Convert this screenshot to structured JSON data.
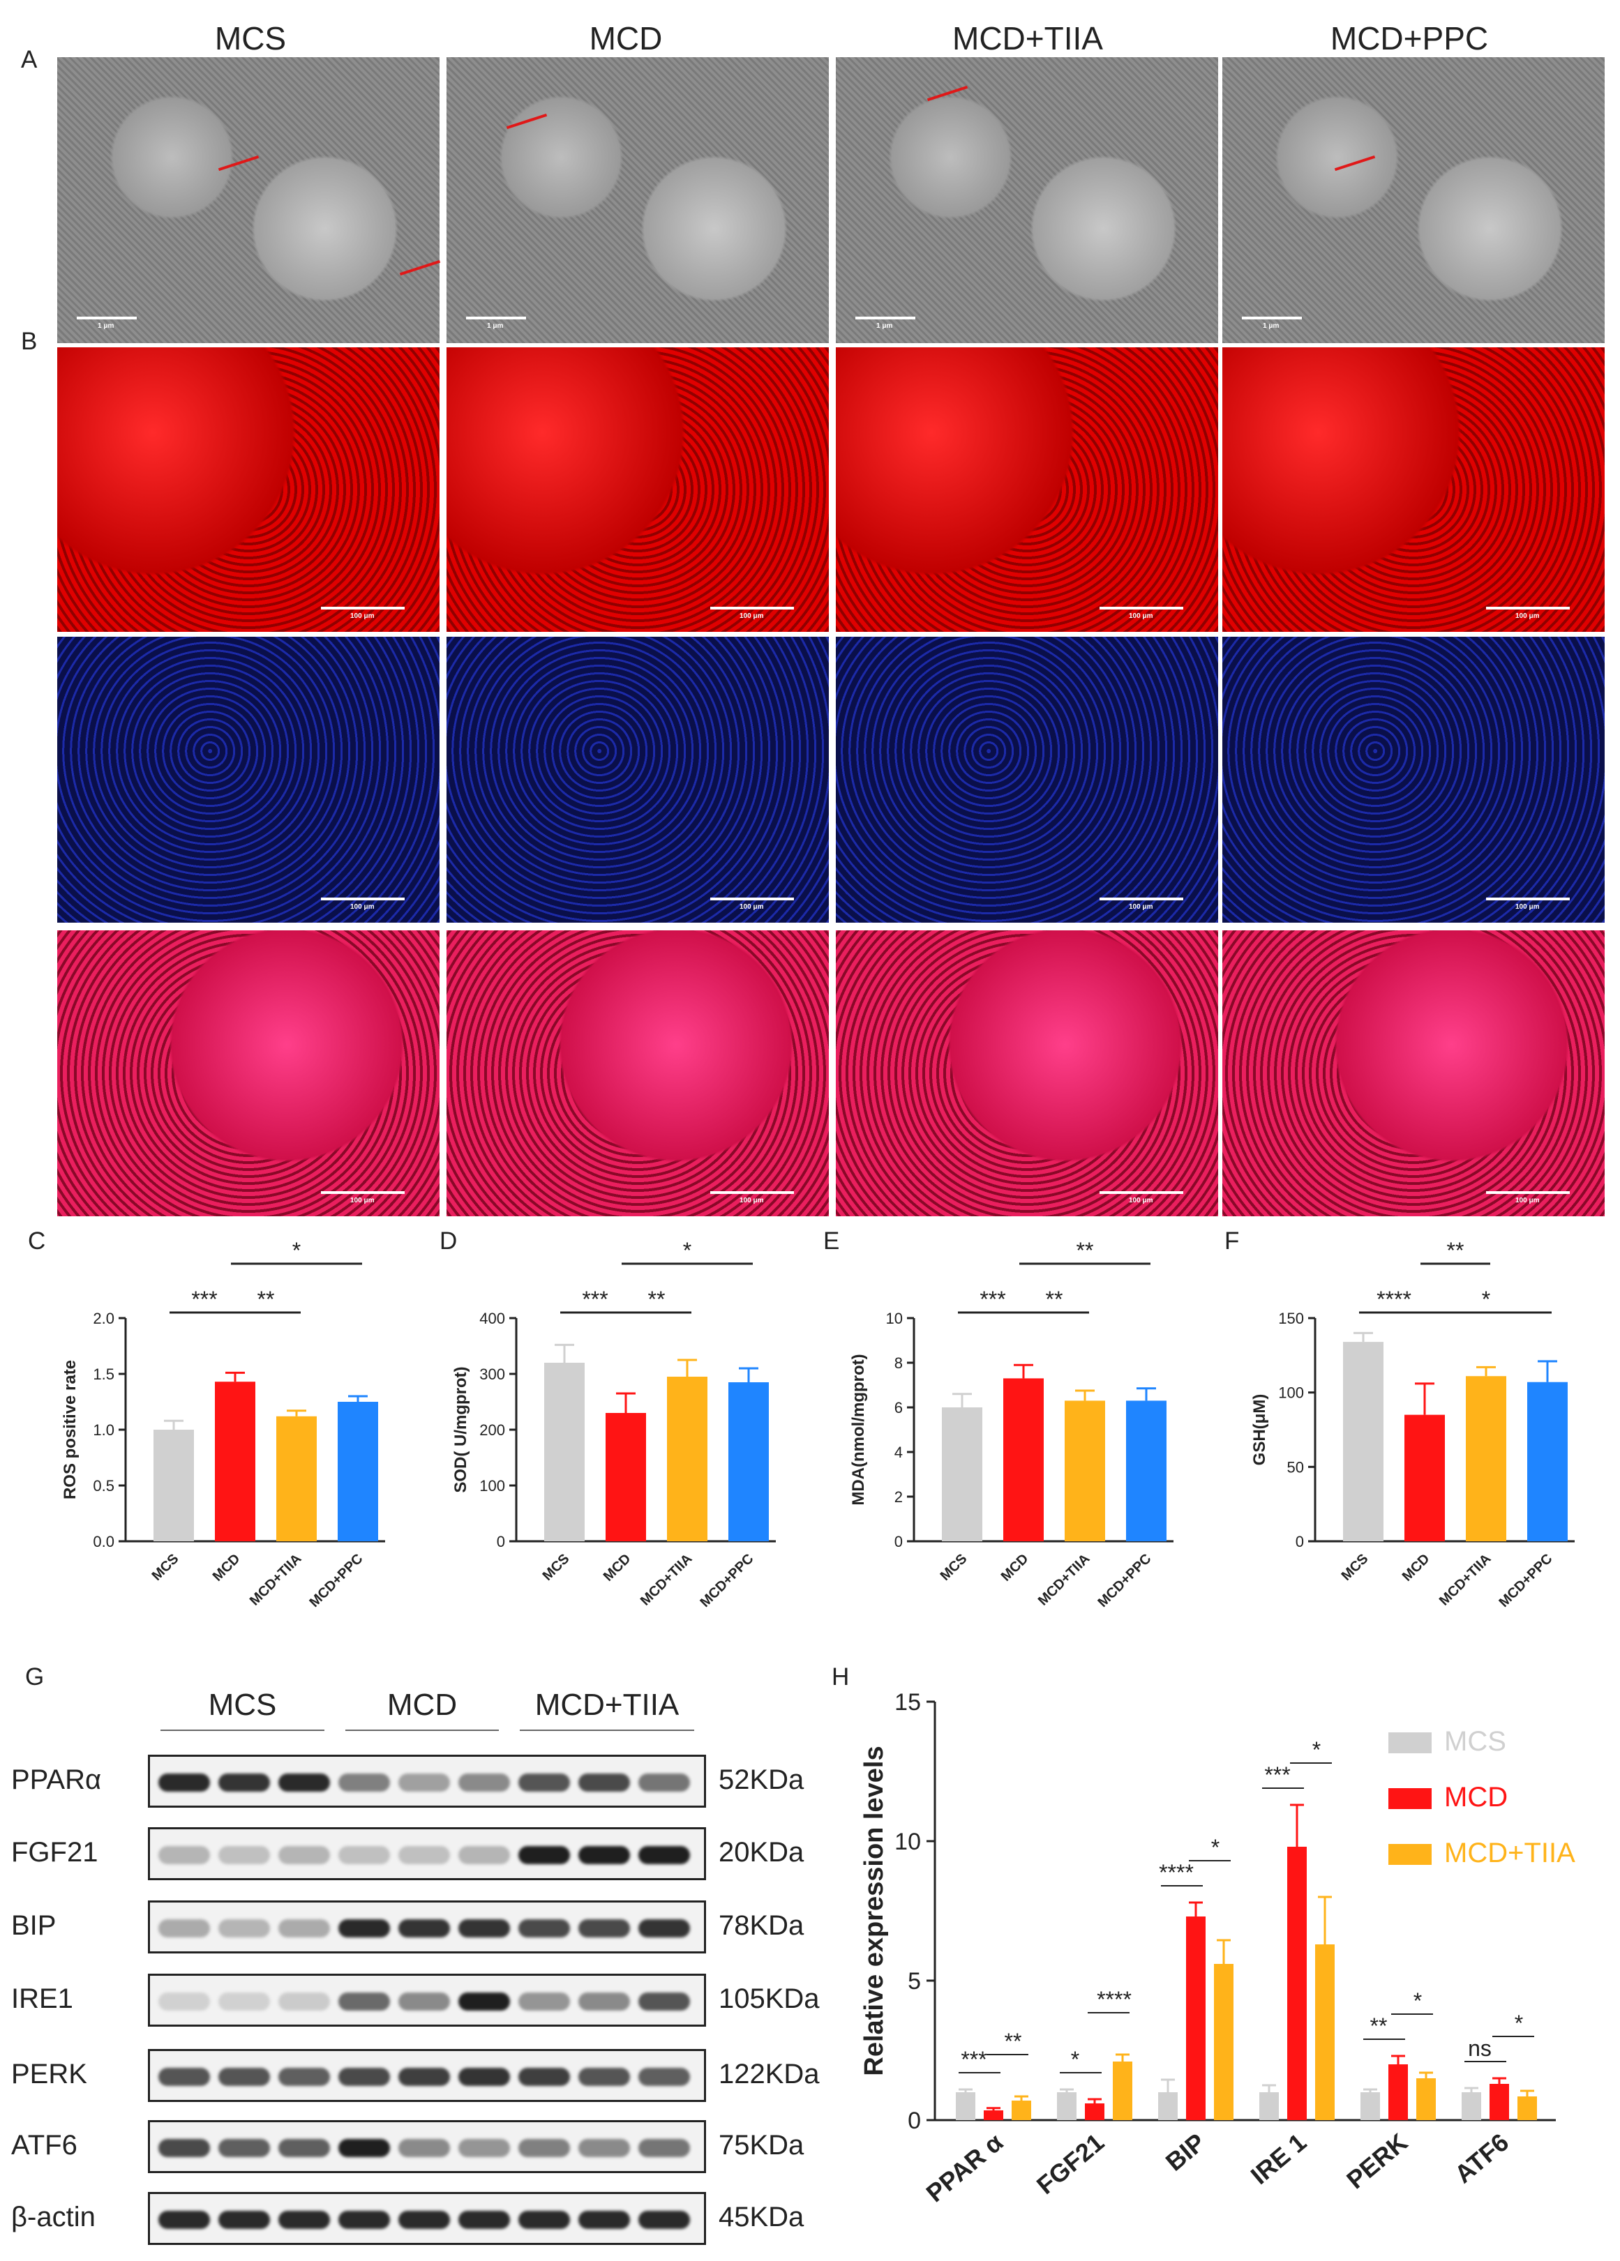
{
  "panel_letters": {
    "A": "A",
    "B": "B",
    "C": "C",
    "D": "D",
    "E": "E",
    "F": "F",
    "G": "G",
    "H": "H"
  },
  "column_headers": [
    "MCS",
    "MCD",
    "MCD+TIIA",
    "MCD+PPC"
  ],
  "em_scale_label": "1 μm",
  "fluor_scale_label": "100 μm",
  "colors": {
    "MCS": "#d0d0d0",
    "MCD": "#ff1414",
    "MCD+TIIA": "#ffb31a",
    "MCD+PPC": "#1f85ff",
    "ros": "#e00000",
    "dapi": "#141e96",
    "merge": "#e0205e"
  },
  "chart_data": [
    {
      "panel": "C",
      "type": "bar",
      "categories": [
        "MCS",
        "MCD",
        "MCD+TIIA",
        "MCD+PPC"
      ],
      "values": [
        1.0,
        1.43,
        1.12,
        1.25
      ],
      "errors": [
        0.08,
        0.08,
        0.05,
        0.05
      ],
      "ylabel": "ROS positive rate",
      "ylim": [
        0,
        2.0
      ],
      "yticks": [
        "0.0",
        "0.5",
        "1.0",
        "1.5",
        "2.0"
      ],
      "significance": [
        {
          "from": 0,
          "to": 1,
          "label": "***",
          "level": 0
        },
        {
          "from": 1,
          "to": 2,
          "label": "**",
          "level": 0
        },
        {
          "from": 1,
          "to": 3,
          "label": "*",
          "level": 1
        }
      ]
    },
    {
      "panel": "D",
      "type": "bar",
      "categories": [
        "MCS",
        "MCD",
        "MCD+TIIA",
        "MCD+PPC"
      ],
      "values": [
        320,
        230,
        295,
        285
      ],
      "errors": [
        32,
        35,
        30,
        25
      ],
      "ylabel": "SOD( U/mgprot)",
      "ylim": [
        0,
        400
      ],
      "yticks": [
        "0",
        "100",
        "200",
        "300",
        "400"
      ],
      "significance": [
        {
          "from": 0,
          "to": 1,
          "label": "***",
          "level": 0
        },
        {
          "from": 1,
          "to": 2,
          "label": "**",
          "level": 0
        },
        {
          "from": 1,
          "to": 3,
          "label": "*",
          "level": 1
        }
      ]
    },
    {
      "panel": "E",
      "type": "bar",
      "categories": [
        "MCS",
        "MCD",
        "MCD+TIIA",
        "MCD+PPC"
      ],
      "values": [
        6.0,
        7.3,
        6.3,
        6.3
      ],
      "errors": [
        0.6,
        0.6,
        0.45,
        0.55
      ],
      "ylabel": "MDA(nmol/mgprot)",
      "ylim": [
        0,
        10
      ],
      "yticks": [
        "0",
        "2",
        "4",
        "6",
        "8",
        "10"
      ],
      "significance": [
        {
          "from": 0,
          "to": 1,
          "label": "***",
          "level": 0
        },
        {
          "from": 1,
          "to": 2,
          "label": "**",
          "level": 0
        },
        {
          "from": 1,
          "to": 3,
          "label": "**",
          "level": 1
        }
      ]
    },
    {
      "panel": "F",
      "type": "bar",
      "categories": [
        "MCS",
        "MCD",
        "MCD+TIIA",
        "MCD+PPC"
      ],
      "values": [
        134,
        85,
        111,
        107
      ],
      "errors": [
        6,
        21,
        6,
        14
      ],
      "ylabel": "GSH(μM)",
      "ylim": [
        0,
        150
      ],
      "yticks": [
        "0",
        "50",
        "100",
        "150"
      ],
      "significance": [
        {
          "from": 0,
          "to": 1,
          "label": "****",
          "level": 0
        },
        {
          "from": 1,
          "to": 3,
          "label": "*",
          "level": 0
        },
        {
          "from": 1,
          "to": 2,
          "label": "**",
          "level": 1
        }
      ]
    },
    {
      "panel": "H",
      "type": "bar",
      "categories": [
        "PPAR α",
        "FGF21",
        "BIP",
        "IRE 1",
        "PERK",
        "ATF6"
      ],
      "series": [
        {
          "name": "MCS",
          "values": [
            1.0,
            1.0,
            1.0,
            1.0,
            1.0,
            1.0
          ],
          "errors": [
            0.1,
            0.1,
            0.45,
            0.25,
            0.1,
            0.15
          ]
        },
        {
          "name": "MCD",
          "values": [
            0.35,
            0.6,
            7.3,
            9.8,
            2.0,
            1.3
          ],
          "errors": [
            0.08,
            0.15,
            0.5,
            1.5,
            0.3,
            0.2
          ]
        },
        {
          "name": "MCD+TIIA",
          "values": [
            0.7,
            2.1,
            5.6,
            6.3,
            1.5,
            0.85
          ],
          "errors": [
            0.15,
            0.25,
            0.85,
            1.7,
            0.2,
            0.2
          ]
        }
      ],
      "ylabel": "Relative expression levels",
      "ylim": [
        0,
        15
      ],
      "yticks": [
        "0",
        "5",
        "10",
        "15"
      ],
      "significance": [
        [
          "***",
          "**"
        ],
        [
          "*",
          "****"
        ],
        [
          "****",
          "*"
        ],
        [
          "***",
          "*"
        ],
        [
          "**",
          "*"
        ],
        [
          "ns",
          "*"
        ]
      ]
    }
  ],
  "western": {
    "groups": [
      "MCS",
      "MCD",
      "MCD+TIIA"
    ],
    "rows": [
      {
        "protein": "PPARα",
        "kda": "52KDa",
        "intensity": [
          0.9,
          0.85,
          0.9,
          0.5,
          0.35,
          0.45,
          0.7,
          0.75,
          0.55
        ]
      },
      {
        "protein": "FGF21",
        "kda": "20KDa",
        "intensity": [
          0.25,
          0.2,
          0.25,
          0.2,
          0.2,
          0.25,
          0.95,
          0.95,
          0.95
        ]
      },
      {
        "protein": "BIP",
        "kda": "78KDa",
        "intensity": [
          0.3,
          0.25,
          0.3,
          0.9,
          0.85,
          0.85,
          0.75,
          0.75,
          0.85
        ]
      },
      {
        "protein": "IRE1",
        "kda": "105KDa",
        "intensity": [
          0.12,
          0.12,
          0.15,
          0.6,
          0.45,
          0.95,
          0.4,
          0.45,
          0.7
        ]
      },
      {
        "protein": "PERK",
        "kda": "122KDa",
        "intensity": [
          0.7,
          0.7,
          0.65,
          0.75,
          0.8,
          0.85,
          0.8,
          0.7,
          0.65
        ]
      },
      {
        "protein": "ATF6",
        "kda": "75KDa",
        "intensity": [
          0.75,
          0.65,
          0.65,
          0.95,
          0.45,
          0.4,
          0.5,
          0.45,
          0.55
        ]
      },
      {
        "protein": "β-actin",
        "kda": "45KDa",
        "intensity": [
          0.9,
          0.9,
          0.9,
          0.9,
          0.9,
          0.9,
          0.9,
          0.9,
          0.9
        ]
      }
    ]
  }
}
